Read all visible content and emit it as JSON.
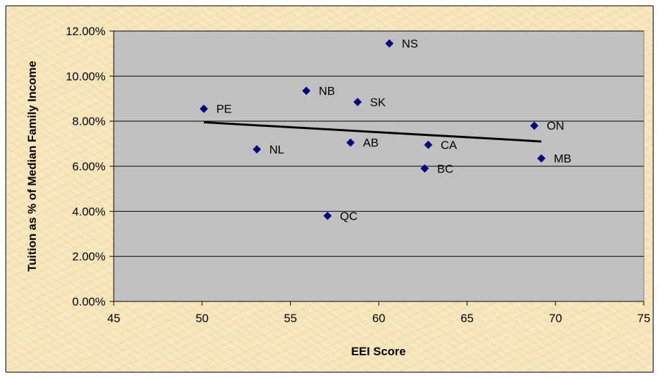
{
  "chart_data": {
    "type": "scatter",
    "title": "",
    "xlabel": "EEI Score",
    "ylabel": "Tuition as % of Median Family Income",
    "xlim": [
      45,
      75
    ],
    "ylim": [
      0,
      12
    ],
    "x_ticks": [
      45,
      50,
      55,
      60,
      65,
      70,
      75
    ],
    "x_tick_labels": [
      "45",
      "50",
      "55",
      "60",
      "65",
      "70",
      "75"
    ],
    "y_ticks": [
      0,
      2,
      4,
      6,
      8,
      10,
      12
    ],
    "y_tick_labels": [
      "0.00%",
      "2.00%",
      "4.00%",
      "6.00%",
      "8.00%",
      "10.00%",
      "12.00%"
    ],
    "grid": "horizontal",
    "legend": "none",
    "points": [
      {
        "label": "PE",
        "x": 50.1,
        "y": 8.55
      },
      {
        "label": "NL",
        "x": 53.1,
        "y": 6.75
      },
      {
        "label": "NB",
        "x": 55.9,
        "y": 9.35
      },
      {
        "label": "QC",
        "x": 57.1,
        "y": 3.8
      },
      {
        "label": "AB",
        "x": 58.4,
        "y": 7.05
      },
      {
        "label": "SK",
        "x": 58.8,
        "y": 8.85
      },
      {
        "label": "NS",
        "x": 60.6,
        "y": 11.45
      },
      {
        "label": "BC",
        "x": 62.6,
        "y": 5.9
      },
      {
        "label": "CA",
        "x": 62.8,
        "y": 6.95
      },
      {
        "label": "ON",
        "x": 68.8,
        "y": 7.8
      },
      {
        "label": "MB",
        "x": 69.2,
        "y": 6.35
      }
    ],
    "trendline": {
      "x": [
        50.1,
        69.2
      ],
      "y": [
        7.95,
        7.1
      ]
    },
    "colors": {
      "plot_area": "#c0c0c0",
      "marker": "#000080",
      "trendline": "#000000",
      "gridline": "#000000",
      "frame_background": "#f6e3b6"
    }
  }
}
